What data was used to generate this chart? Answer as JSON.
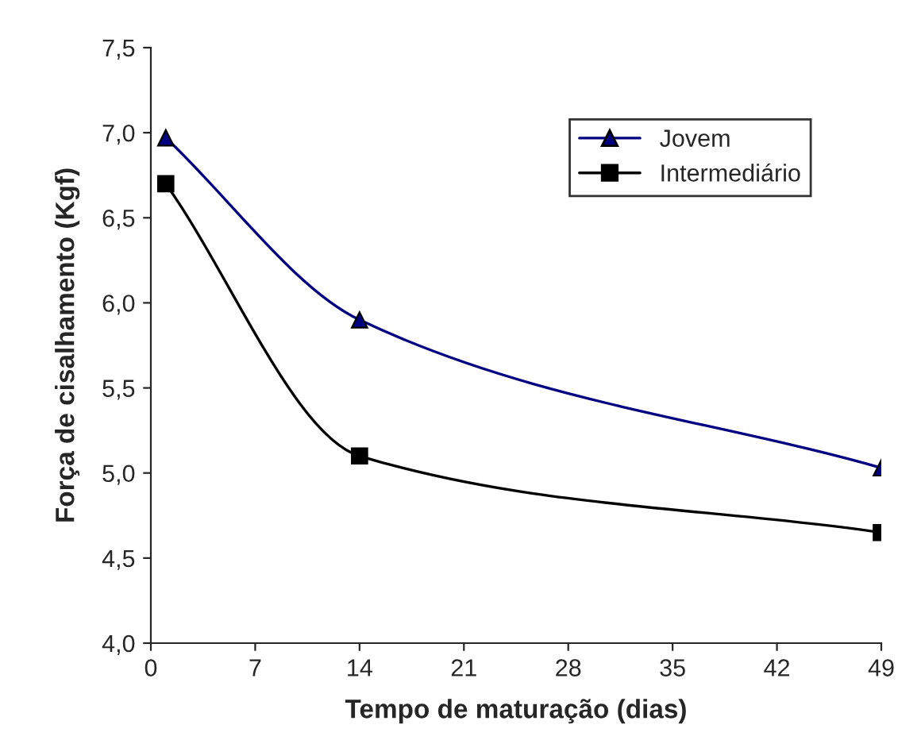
{
  "chart_data": {
    "type": "line",
    "xlabel": "Tempo de maturação (dias)",
    "ylabel": "Força de cisalhamento (Kgf)",
    "xlim": [
      0,
      49
    ],
    "xticks": [
      0,
      7,
      14,
      21,
      28,
      35,
      42,
      49
    ],
    "ylim": [
      4.0,
      7.5
    ],
    "yticks": [
      {
        "value": 4.0,
        "label": "4,0"
      },
      {
        "value": 4.5,
        "label": "4,5"
      },
      {
        "value": 5.0,
        "label": "5,0"
      },
      {
        "value": 5.5,
        "label": "5,5"
      },
      {
        "value": 6.0,
        "label": "6,0"
      },
      {
        "value": 6.5,
        "label": "6,5"
      },
      {
        "value": 7.0,
        "label": "7,0"
      },
      {
        "value": 7.5,
        "label": "7,5"
      }
    ],
    "grid": false,
    "legend": "top right",
    "line_style": "solid",
    "series": [
      {
        "name": "Jovem",
        "color": "#000080",
        "marker": "triangle",
        "x": [
          1,
          14,
          49
        ],
        "values": [
          6.97,
          5.9,
          5.03
        ]
      },
      {
        "name": "Intermediário",
        "color": "#000000",
        "marker": "square",
        "x": [
          1,
          14,
          49
        ],
        "values": [
          6.7,
          5.1,
          4.65
        ]
      }
    ]
  }
}
